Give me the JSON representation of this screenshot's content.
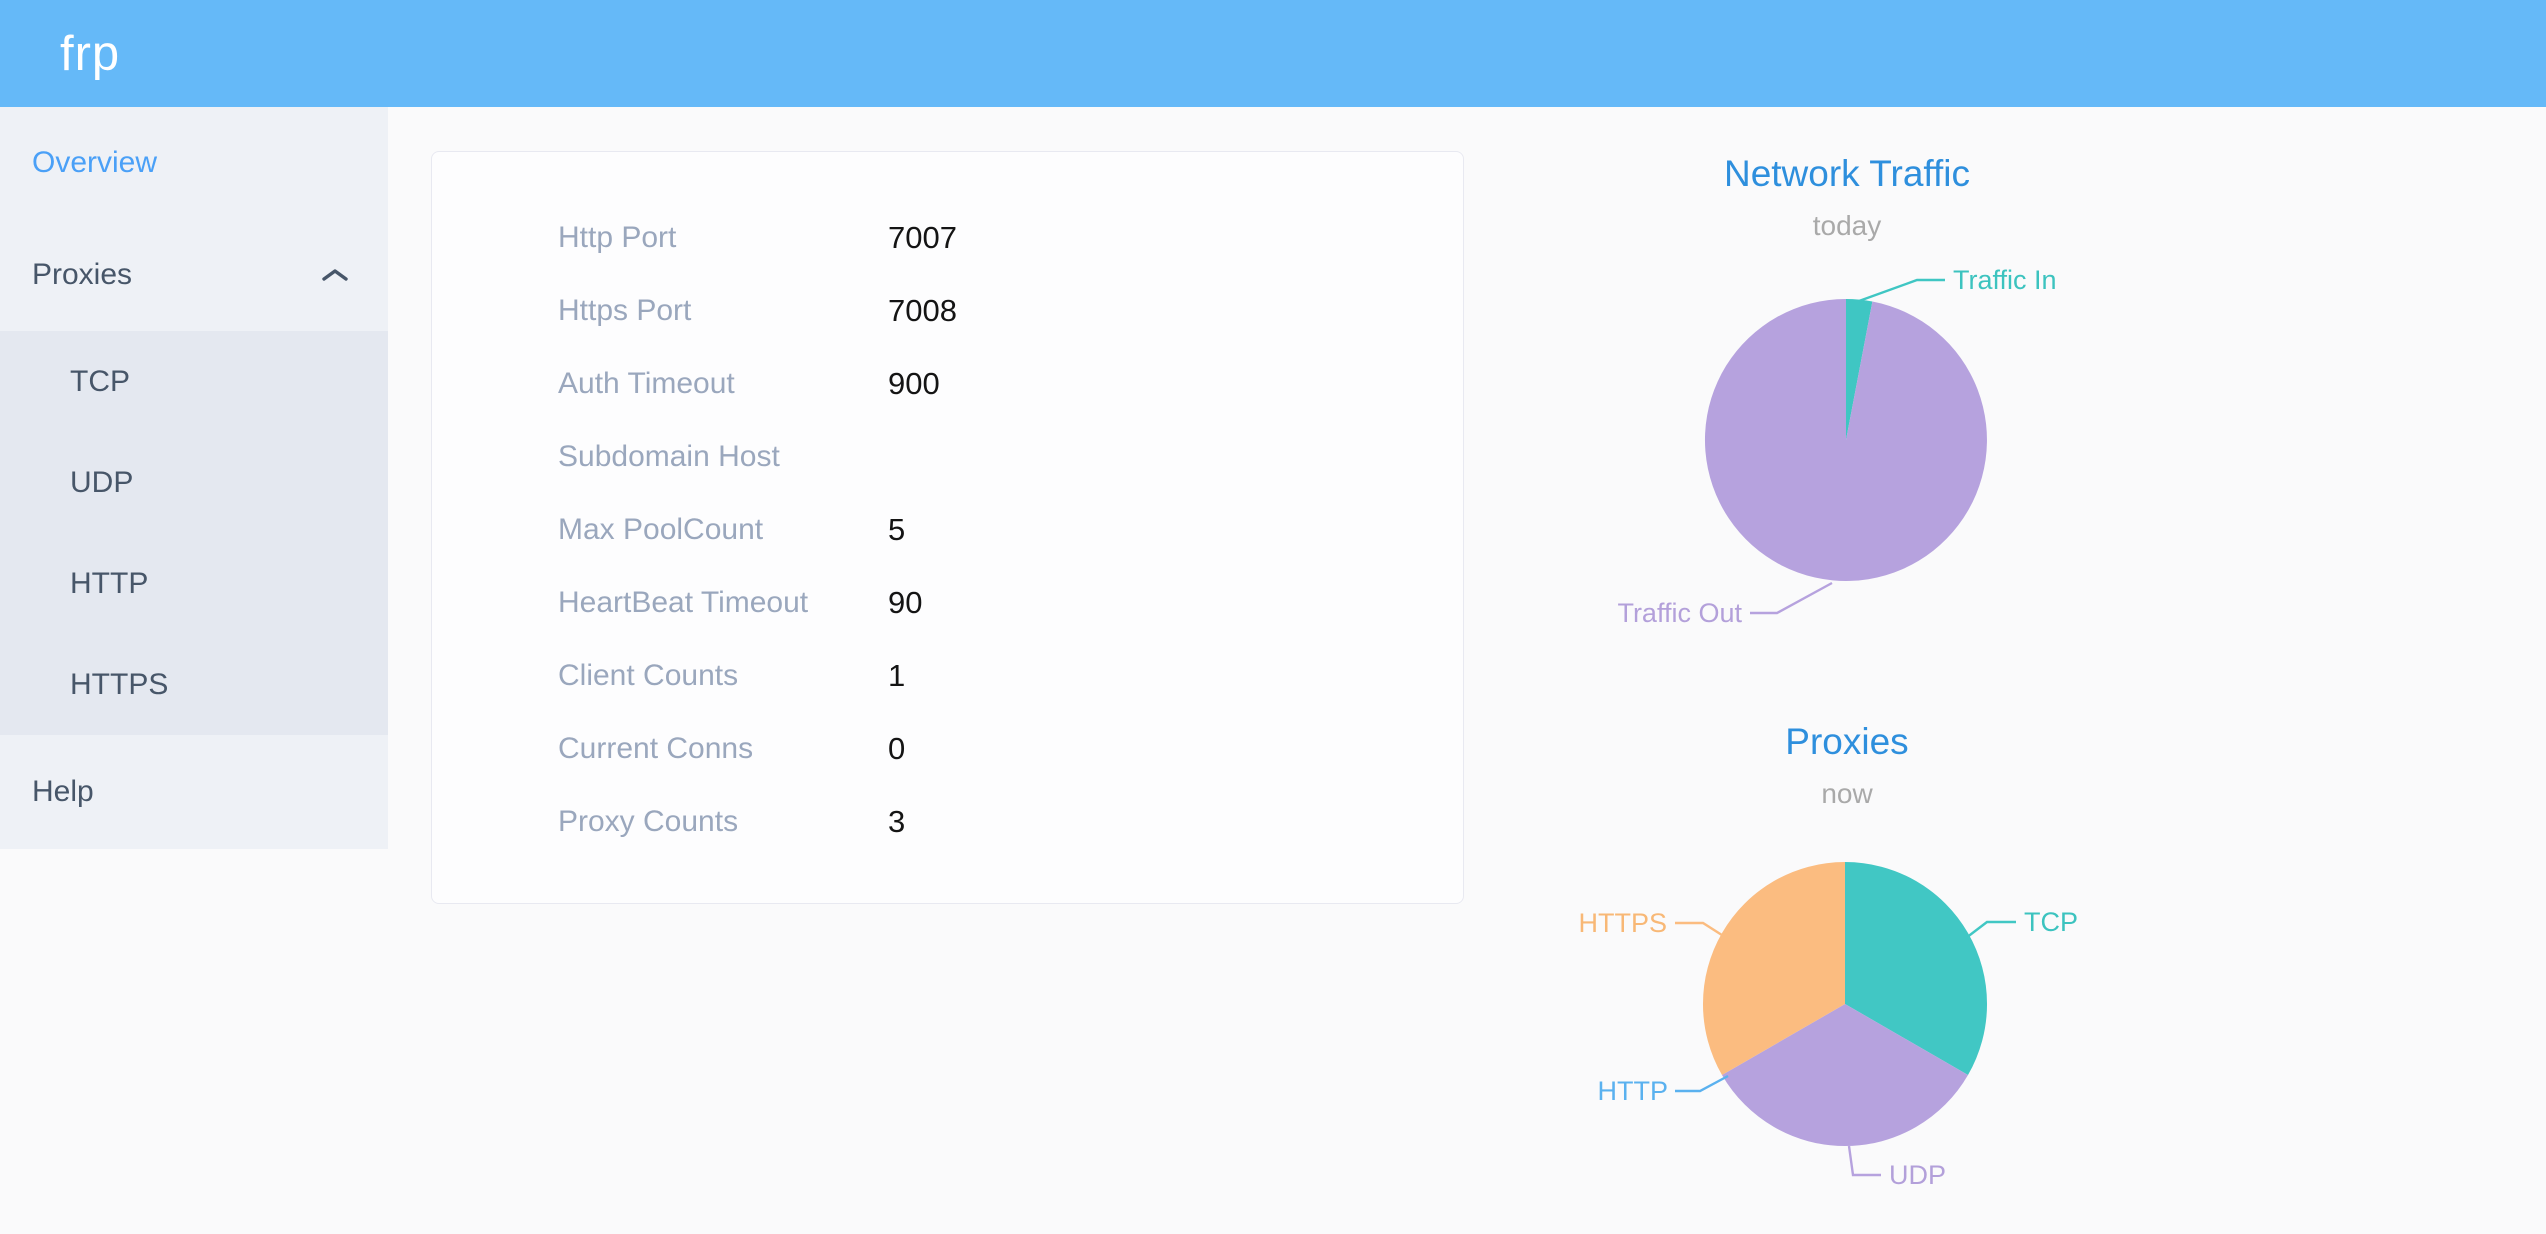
{
  "app": {
    "logo_text": "frp"
  },
  "sidebar": {
    "items": [
      {
        "label": "Overview",
        "active": true
      },
      {
        "label": "Proxies",
        "expanded": true,
        "children": [
          {
            "label": "TCP"
          },
          {
            "label": "UDP"
          },
          {
            "label": "HTTP"
          },
          {
            "label": "HTTPS"
          }
        ]
      },
      {
        "label": "Help"
      }
    ]
  },
  "overview_card": {
    "rows": [
      {
        "label": "Http Port",
        "value": "7007"
      },
      {
        "label": "Https Port",
        "value": "7008"
      },
      {
        "label": "Auth Timeout",
        "value": "900"
      },
      {
        "label": "Subdomain Host",
        "value": ""
      },
      {
        "label": "Max PoolCount",
        "value": "5"
      },
      {
        "label": "HeartBeat Timeout",
        "value": "90"
      },
      {
        "label": "Client Counts",
        "value": "1"
      },
      {
        "label": "Current Conns",
        "value": "0"
      },
      {
        "label": "Proxy Counts",
        "value": "3"
      }
    ]
  },
  "chart_data": [
    {
      "type": "pie",
      "title": "Network Traffic",
      "subtitle": "today",
      "legend": false,
      "label_style": "outside labels with leader lines",
      "value_unit": "percent of total traffic, estimated from slice angles",
      "series": [
        {
          "name": "Traffic In",
          "value": 3,
          "color": "#3fc6c3",
          "label_color": "#3cc3bf"
        },
        {
          "name": "Traffic Out",
          "value": 97,
          "color": "#b6a2de",
          "label_color": "#b3a0da"
        }
      ]
    },
    {
      "type": "pie",
      "title": "Proxies",
      "subtitle": "now",
      "legend": false,
      "label_style": "outside labels with leader lines",
      "value_unit": "proxy count (total shown as Proxy Counts = 3; HTTP slice is zero-width)",
      "series": [
        {
          "name": "TCP",
          "value": 1,
          "color": "#41c7c4",
          "label_color": "#3cc3bf"
        },
        {
          "name": "UDP",
          "value": 1,
          "color": "#b6a2de",
          "label_color": "#b3a0da"
        },
        {
          "name": "HTTP",
          "value": 0,
          "color": "#5ab1ef",
          "label_color": "#5ab1ef"
        },
        {
          "name": "HTTPS",
          "value": 1,
          "color": "#fbbc80",
          "label_color": "#f8b876"
        }
      ]
    }
  ],
  "colors": {
    "header_bg": "#65b9f8",
    "logo": "#ffffff",
    "sidebar_bg": "#eef1f6",
    "submenu_bg": "#e4e8f0",
    "sidebar_text": "#475669",
    "active_link": "#4aa0f7",
    "page_bg": "#fafafb",
    "card_bg": "#fdfdfe",
    "card_border": "#e8e9f1",
    "row_label": "#9aa7bd",
    "row_value": "#141414",
    "chart_title": "#2e8fdd",
    "chart_subtitle": "#a9a9a9"
  }
}
